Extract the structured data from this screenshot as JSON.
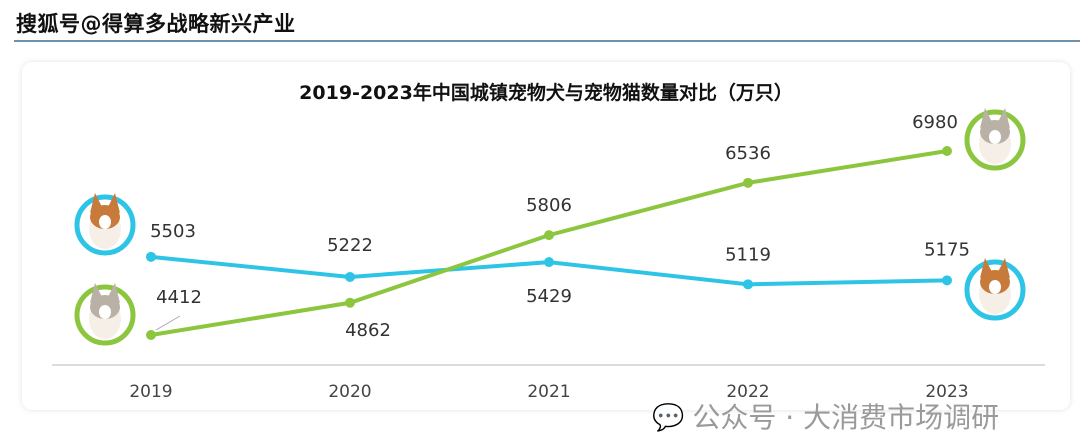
{
  "header": {
    "title": "搜狐号@得算多战略新兴产业"
  },
  "watermark": {
    "text": "公众号 · 大消费市场调研",
    "icon": "wechat-icon"
  },
  "chart_data": {
    "type": "line",
    "title": "2019-2023年中国城镇宠物犬与宠物猫数量对比（万只）",
    "categories": [
      "2019",
      "2020",
      "2021",
      "2022",
      "2023"
    ],
    "series": [
      {
        "name": "宠物犬",
        "color": "#2ec4e6",
        "values": [
          5503,
          5222,
          5429,
          5119,
          5175
        ]
      },
      {
        "name": "宠物猫",
        "color": "#8cc63f",
        "values": [
          4412,
          4862,
          5806,
          6536,
          6980
        ]
      }
    ],
    "ylim": [
      4412,
      6980
    ],
    "grid": false
  }
}
